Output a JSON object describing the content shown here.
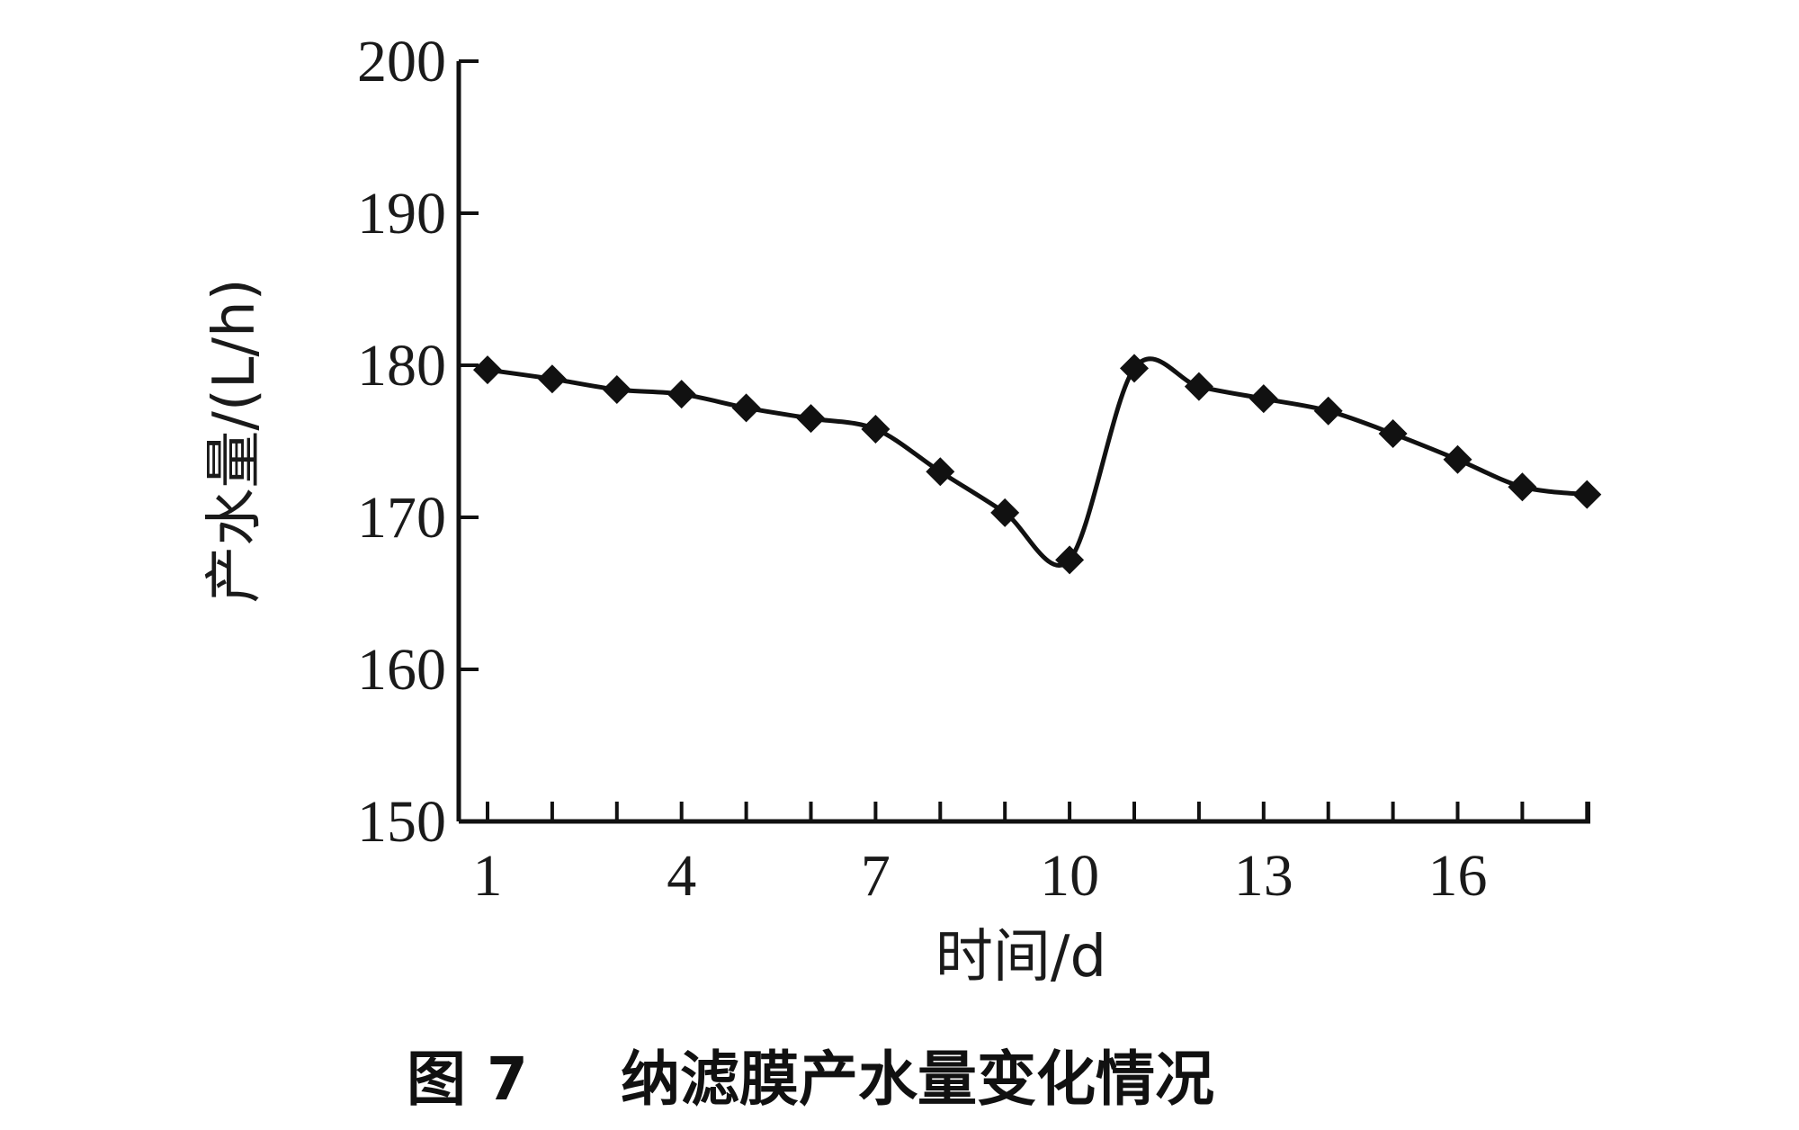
{
  "chart_data": {
    "type": "line",
    "xlabel": "时间/d",
    "ylabel": "产水量/(L/h)",
    "x": [
      1,
      2,
      3,
      4,
      5,
      6,
      7,
      8,
      9,
      10,
      11,
      12,
      13,
      14,
      15,
      16,
      17,
      18
    ],
    "series": [
      {
        "values": [
          179.7,
          179.1,
          178.4,
          178.1,
          177.2,
          176.5,
          175.8,
          173.0,
          170.3,
          167.2,
          179.8,
          178.6,
          177.8,
          177.0,
          175.5,
          173.8,
          172.0,
          171.5
        ]
      }
    ],
    "xticks": [
      "1",
      "4",
      "7",
      "10",
      "13",
      "16"
    ],
    "yticks": [
      "150",
      "160",
      "170",
      "180",
      "190",
      "200"
    ],
    "xlim": [
      1,
      18
    ],
    "ylim": [
      150,
      200
    ],
    "grid": false
  },
  "caption": {
    "figure_no": "图 7",
    "title": "纳滤膜产水量变化情况"
  }
}
